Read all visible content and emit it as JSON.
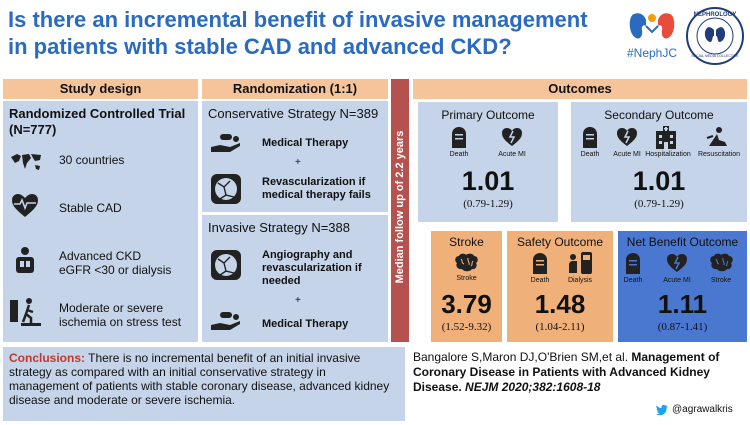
{
  "title": "Is there an incremental benefit of invasive management in patients with stable CAD and advanced CKD?",
  "logos": {
    "hashtag": "#NephJC",
    "nephrology_seal": "NEPHROLOGY",
    "seal_small": "SOCIAL MEDIA COLLECTIVE"
  },
  "study_design": {
    "header": "Study design",
    "rct": "Randomized Controlled Trial",
    "n": "(N=777)",
    "items": [
      {
        "icon": "world-map-icon",
        "text": "30 countries"
      },
      {
        "icon": "heart-pulse-icon",
        "text": "Stable CAD"
      },
      {
        "icon": "dialysis-patient-icon",
        "text": "Advanced CKD",
        "text2": "eGFR <30 or dialysis"
      },
      {
        "icon": "stress-test-icon",
        "text": "Moderate or severe",
        "text2": "ischemia on stress test"
      }
    ]
  },
  "randomization": {
    "header": "Randomization (1:1)",
    "conservative": {
      "title": "Conservative Strategy N=389",
      "therapy": "Medical Therapy",
      "plus": "+",
      "revasc": "Revascularization if medical therapy fails"
    },
    "invasive": {
      "title": "Invasive Strategy N=388",
      "angio": "Angiography and revascularization if needed",
      "plus": "+",
      "therapy": "Medical Therapy"
    }
  },
  "followup": "Median follow up of 2.2 years",
  "outcomes": {
    "header": "Outcomes",
    "primary": {
      "title": "Primary Outcome",
      "labels": [
        "Death",
        "Acute MI"
      ],
      "value": "1.01",
      "ci": "(0.79-1.29)"
    },
    "secondary": {
      "title": "Secondary Outcome",
      "labels": [
        "Death",
        "Acute MI",
        "Hospitalization",
        "Resuscitation"
      ],
      "value": "1.01",
      "ci": "(0.79-1.29)"
    },
    "stroke": {
      "title": "Stroke",
      "labels": [
        "Stroke"
      ],
      "value": "3.79",
      "ci": "(1.52-9.32)"
    },
    "safety": {
      "title": "Safety Outcome",
      "labels": [
        "Death",
        "Dialysis"
      ],
      "value": "1.48",
      "ci": "(1.04-2.11)"
    },
    "net": {
      "title": "Net Benefit Outcome",
      "labels": [
        "Death",
        "Acute MI",
        "Stroke"
      ],
      "value": "1.11",
      "ci": "(0.87-1.41)"
    }
  },
  "conclusions": {
    "label": "Conclusions:",
    "text": " There is no incremental benefit of an initial invasive strategy as compared with an initial conservative strategy  in management of patients with stable coronary disease, advanced kidney disease and moderate or severe ischemia."
  },
  "citation": {
    "authors": "Bangalore S,Maron DJ,O'Brien SM,et al. ",
    "title": "Management of Coronary Disease in Patients with Advanced Kidney Disease. ",
    "journal": "NEJM 2020;382:1608-18"
  },
  "handle": "@agrawalkris",
  "colors": {
    "title": "#2a6bbf",
    "header": "#f5c49a",
    "panel": "#c5d4e8",
    "orange": "#f0b07a",
    "netbox": "#4a78d0",
    "followup": "#b5524f",
    "concl_red": "#c0392b"
  }
}
